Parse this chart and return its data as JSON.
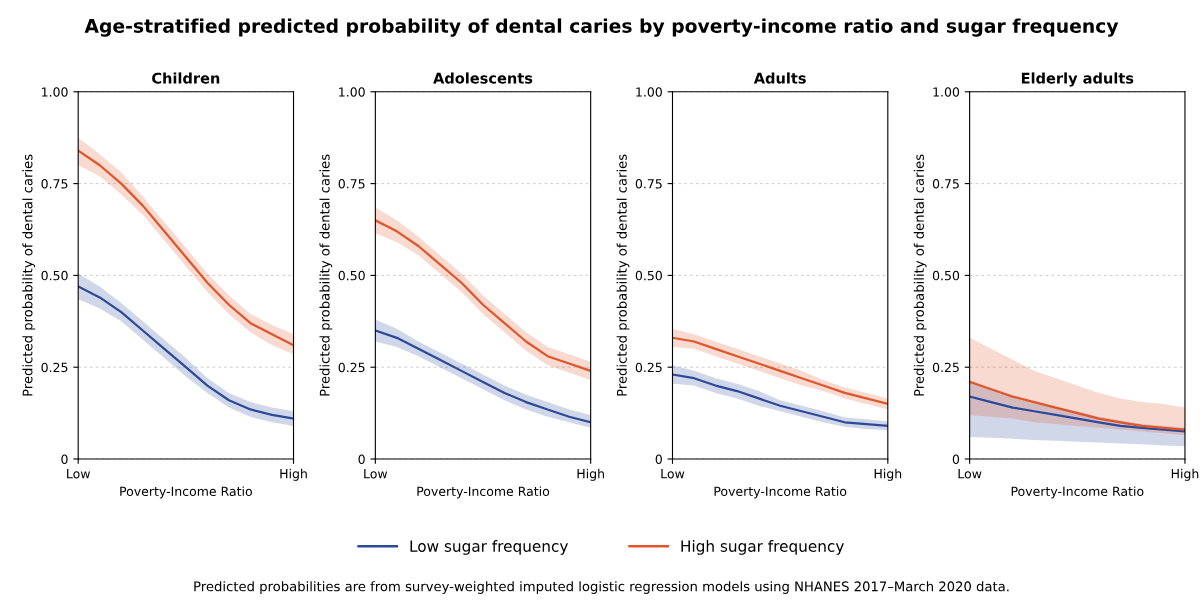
{
  "chart_data": [
    {
      "type": "line",
      "title": "Children",
      "xlabel": "Poverty-Income Ratio",
      "ylabel": "Predicted probability of dental caries",
      "annotations": [
        "Age-stratified predicted probability of dental caries by poverty-income ratio and sugar frequency",
        "Predicted probabilities are from survey-weighted imputed logistic regression models using NHANES 2017–March 2020 data."
      ],
      "categories": [
        "Low",
        null,
        null,
        null,
        null,
        null,
        null,
        null,
        null,
        null,
        "High"
      ],
      "ylim": [
        0,
        1
      ],
      "yticks": [
        0,
        {
          "value": 0.25,
          "label": "0.25"
        },
        {
          "value": 0.5,
          "label": "0.50"
        },
        {
          "value": 0.75,
          "label": "0.75"
        },
        {
          "value": 1,
          "label": "1.00"
        }
      ],
      "grid": "y",
      "legend": "bottom",
      "marker": "none",
      "line_style": "solid",
      "series": [
        {
          "name": "Low sugar frequency",
          "color": "#2b4a9a",
          "values": [
            0.47,
            0.44,
            0.4,
            0.35,
            0.3,
            0.25,
            0.2,
            0.16,
            0.135,
            0.12,
            0.11
          ],
          "lower": [
            0.435,
            0.41,
            0.375,
            0.325,
            0.275,
            0.225,
            0.18,
            0.14,
            0.115,
            0.1,
            0.09
          ],
          "upper": [
            0.505,
            0.47,
            0.425,
            0.375,
            0.325,
            0.275,
            0.22,
            0.18,
            0.155,
            0.14,
            0.13
          ]
        },
        {
          "name": "High sugar frequency",
          "color": "#e0552a",
          "values": [
            0.84,
            0.8,
            0.75,
            0.69,
            0.62,
            0.55,
            0.48,
            0.42,
            0.37,
            0.34,
            0.31
          ],
          "lower": [
            0.8,
            0.77,
            0.72,
            0.665,
            0.595,
            0.525,
            0.455,
            0.395,
            0.345,
            0.31,
            0.285
          ],
          "upper": [
            0.875,
            0.83,
            0.78,
            0.715,
            0.645,
            0.575,
            0.505,
            0.445,
            0.395,
            0.365,
            0.34
          ]
        }
      ]
    },
    {
      "type": "line",
      "title": "Adolescents",
      "xlabel": "Poverty-Income Ratio",
      "ylabel": "Predicted probability of dental caries",
      "categories": [
        "Low",
        null,
        null,
        null,
        null,
        null,
        null,
        null,
        null,
        null,
        "High"
      ],
      "ylim": [
        0,
        1
      ],
      "yticks": [
        0,
        {
          "value": 0.25,
          "label": "0.25"
        },
        {
          "value": 0.5,
          "label": "0.50"
        },
        {
          "value": 0.75,
          "label": "0.75"
        },
        {
          "value": 1,
          "label": "1.00"
        }
      ],
      "grid": "y",
      "legend": "bottom",
      "marker": "none",
      "line_style": "solid",
      "series": [
        {
          "name": "Low sugar frequency",
          "color": "#2b4a9a",
          "values": [
            0.35,
            0.33,
            0.3,
            0.27,
            0.24,
            0.21,
            0.18,
            0.155,
            0.135,
            0.115,
            0.1
          ],
          "lower": [
            0.32,
            0.305,
            0.28,
            0.25,
            0.22,
            0.19,
            0.16,
            0.135,
            0.115,
            0.1,
            0.085
          ],
          "upper": [
            0.38,
            0.355,
            0.32,
            0.29,
            0.26,
            0.23,
            0.2,
            0.175,
            0.155,
            0.135,
            0.12
          ]
        },
        {
          "name": "High sugar frequency",
          "color": "#e0552a",
          "values": [
            0.65,
            0.62,
            0.58,
            0.53,
            0.48,
            0.42,
            0.37,
            0.32,
            0.28,
            0.26,
            0.24
          ],
          "lower": [
            0.615,
            0.59,
            0.555,
            0.505,
            0.455,
            0.395,
            0.345,
            0.295,
            0.255,
            0.235,
            0.215
          ],
          "upper": [
            0.685,
            0.65,
            0.605,
            0.555,
            0.505,
            0.445,
            0.395,
            0.345,
            0.305,
            0.285,
            0.265
          ]
        }
      ]
    },
    {
      "type": "line",
      "title": "Adults",
      "xlabel": "Poverty-Income Ratio",
      "ylabel": "Predicted probability of dental caries",
      "categories": [
        "Low",
        null,
        null,
        null,
        null,
        null,
        null,
        null,
        null,
        null,
        "High"
      ],
      "ylim": [
        0,
        1
      ],
      "yticks": [
        0,
        {
          "value": 0.25,
          "label": "0.25"
        },
        {
          "value": 0.5,
          "label": "0.50"
        },
        {
          "value": 0.75,
          "label": "0.75"
        },
        {
          "value": 1,
          "label": "1.00"
        }
      ],
      "grid": "y",
      "legend": "bottom",
      "marker": "none",
      "line_style": "solid",
      "series": [
        {
          "name": "Low sugar frequency",
          "color": "#2b4a9a",
          "values": [
            0.23,
            0.22,
            0.2,
            0.185,
            0.165,
            0.145,
            0.13,
            0.115,
            0.1,
            0.095,
            0.09
          ],
          "lower": [
            0.205,
            0.2,
            0.18,
            0.165,
            0.145,
            0.13,
            0.115,
            0.1,
            0.088,
            0.082,
            0.078
          ],
          "upper": [
            0.255,
            0.24,
            0.22,
            0.205,
            0.185,
            0.16,
            0.145,
            0.13,
            0.113,
            0.108,
            0.102
          ]
        },
        {
          "name": "High sugar frequency",
          "color": "#e0552a",
          "values": [
            0.33,
            0.32,
            0.3,
            0.28,
            0.26,
            0.24,
            0.22,
            0.2,
            0.18,
            0.165,
            0.15
          ],
          "lower": [
            0.305,
            0.3,
            0.28,
            0.26,
            0.24,
            0.22,
            0.2,
            0.185,
            0.165,
            0.15,
            0.135
          ],
          "upper": [
            0.355,
            0.34,
            0.32,
            0.3,
            0.28,
            0.26,
            0.24,
            0.215,
            0.195,
            0.18,
            0.165
          ]
        }
      ]
    },
    {
      "type": "line",
      "title": "Elderly adults",
      "xlabel": "Poverty-Income Ratio",
      "ylabel": "Predicted probability of dental caries",
      "categories": [
        "Low",
        null,
        null,
        null,
        null,
        null,
        null,
        null,
        null,
        null,
        "High"
      ],
      "ylim": [
        0,
        1
      ],
      "yticks": [
        0,
        {
          "value": 0.25,
          "label": "0.25"
        },
        {
          "value": 0.5,
          "label": "0.50"
        },
        {
          "value": 0.75,
          "label": "0.75"
        },
        {
          "value": 1,
          "label": "1.00"
        }
      ],
      "grid": "y",
      "legend": "bottom",
      "marker": "none",
      "line_style": "solid",
      "series": [
        {
          "name": "Low sugar frequency",
          "color": "#2b4a9a",
          "values": [
            0.17,
            0.155,
            0.14,
            0.13,
            0.12,
            0.11,
            0.1,
            0.09,
            0.085,
            0.08,
            0.075
          ],
          "lower": [
            0.06,
            0.058,
            0.055,
            0.052,
            0.05,
            0.047,
            0.045,
            0.042,
            0.04,
            0.037,
            0.035
          ],
          "upper": [
            0.21,
            0.19,
            0.17,
            0.155,
            0.14,
            0.13,
            0.115,
            0.105,
            0.095,
            0.09,
            0.085
          ]
        },
        {
          "name": "High sugar frequency",
          "color": "#e0552a",
          "values": [
            0.21,
            0.19,
            0.17,
            0.155,
            0.14,
            0.125,
            0.11,
            0.1,
            0.09,
            0.085,
            0.08
          ],
          "lower": [
            0.12,
            0.115,
            0.11,
            0.1,
            0.095,
            0.09,
            0.085,
            0.08,
            0.075,
            0.07,
            0.065
          ],
          "upper": [
            0.33,
            0.3,
            0.27,
            0.24,
            0.22,
            0.2,
            0.18,
            0.165,
            0.155,
            0.15,
            0.14
          ]
        }
      ]
    }
  ]
}
